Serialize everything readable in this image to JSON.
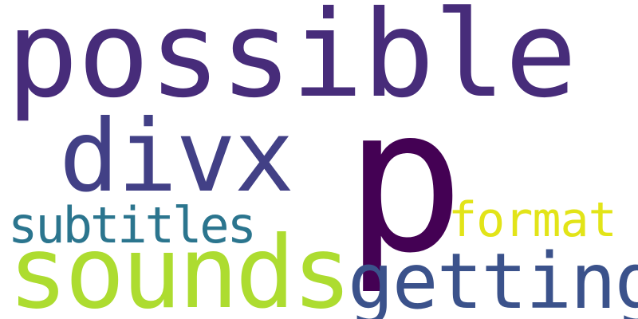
{
  "background": "#ffffff",
  "words": [
    {
      "text": "possible",
      "color": "#472c7a"
    },
    {
      "text": "p",
      "color": "#440154"
    },
    {
      "text": "divx",
      "color": "#424086"
    },
    {
      "text": "subtitles",
      "color": "#2b758e"
    },
    {
      "text": "format",
      "color": "#e2e418"
    },
    {
      "text": "sounds",
      "color": "#addc30"
    },
    {
      "text": "getting",
      "color": "#3b528b"
    }
  ]
}
